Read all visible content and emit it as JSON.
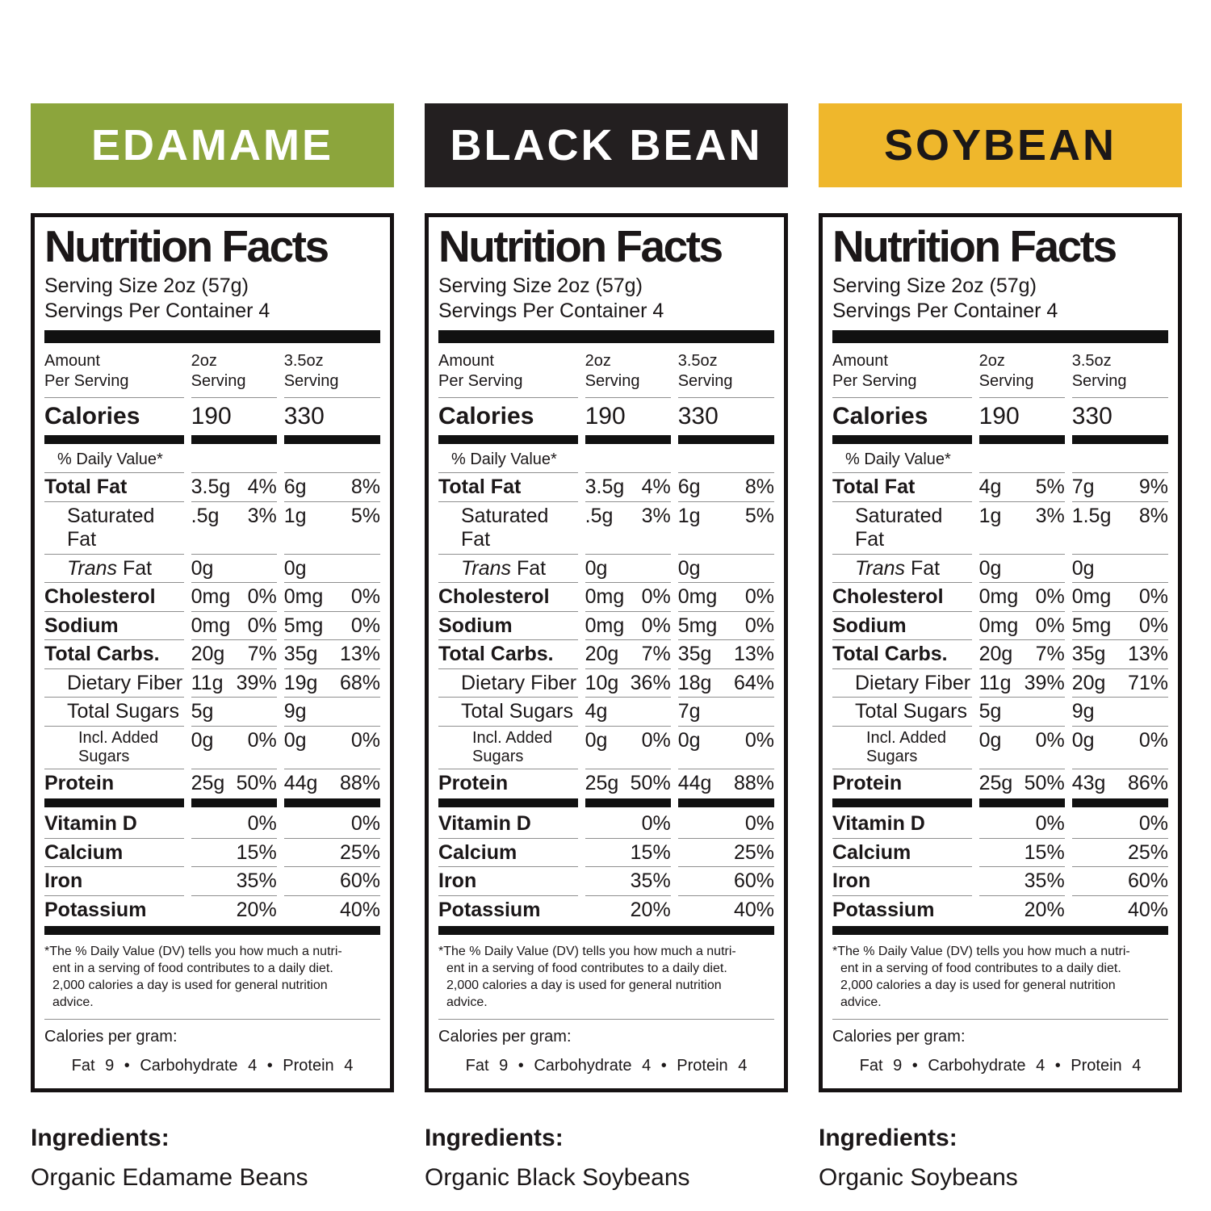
{
  "panels": [
    {
      "header": {
        "label": "EDAMAME",
        "bg": "#8CA53C",
        "fg": "#ffffff"
      },
      "label": {
        "title": "Nutrition Facts",
        "serving_size": "Serving Size 2oz (57g)",
        "servings_per": "Servings Per Container 4",
        "col_headers": [
          "Amount\nPer Serving",
          "2oz\nServing",
          "3.5oz\nServing"
        ],
        "calories": {
          "label": "Calories",
          "v1": "190",
          "v2": "330"
        },
        "dv_heading": "% Daily Value*",
        "rows": [
          {
            "style": "main",
            "label": "Total Fat",
            "v1": "3.5g",
            "p1": "4%",
            "v2": "6g",
            "p2": "8%"
          },
          {
            "style": "sub",
            "label": "Saturated Fat",
            "v1": ".5g",
            "p1": "3%",
            "v2": "1g",
            "p2": "5%"
          },
          {
            "style": "sub",
            "italic": "Trans ",
            "label": "Fat",
            "v1": "0g",
            "p1": "",
            "v2": "0g",
            "p2": ""
          },
          {
            "style": "main",
            "label": "Cholesterol",
            "v1": "0mg",
            "p1": "0%",
            "v2": "0mg",
            "p2": "0%"
          },
          {
            "style": "main",
            "label": "Sodium",
            "v1": "0mg",
            "p1": "0%",
            "v2": "5mg",
            "p2": "0%"
          },
          {
            "style": "main",
            "label": "Total Carbs.",
            "v1": "20g",
            "p1": "7%",
            "v2": "35g",
            "p2": "13%"
          },
          {
            "style": "sub",
            "label": "Dietary Fiber",
            "v1": "11g",
            "p1": "39%",
            "v2": "19g",
            "p2": "68%"
          },
          {
            "style": "sub",
            "label": "Total Sugars",
            "v1": "5g",
            "p1": "",
            "v2": "9g",
            "p2": ""
          },
          {
            "style": "sub2",
            "label": "Incl. Added Sugars",
            "v1": "0g",
            "p1": "0%",
            "v2": "0g",
            "p2": "0%"
          },
          {
            "style": "main",
            "label": "Protein",
            "v1": "25g",
            "p1": "50%",
            "v2": "44g",
            "p2": "88%"
          }
        ],
        "vitamins": [
          {
            "label": "Vitamin D",
            "p1": "0%",
            "p2": "0%"
          },
          {
            "label": "Calcium",
            "p1": "15%",
            "p2": "25%"
          },
          {
            "label": "Iron",
            "p1": "35%",
            "p2": "60%"
          },
          {
            "label": "Potassium",
            "p1": "20%",
            "p2": "40%"
          }
        ],
        "footnote": "*The % Daily Value (DV) tells you how much a nutri-\nent in a serving of food contributes to a daily diet.\n2,000 calories a day is used for general nutrition\nadvice.",
        "cpg_label": "Calories per gram:",
        "cpg_values": "Fat 9 • Carbohydrate 4 • Protein 4"
      },
      "ingredients": {
        "heading": "Ingredients:",
        "value": "Organic Edamame Beans"
      }
    },
    {
      "header": {
        "label": "BLACK BEAN",
        "bg": "#231F20",
        "fg": "#ffffff"
      },
      "label": {
        "title": "Nutrition Facts",
        "serving_size": "Serving Size 2oz (57g)",
        "servings_per": "Servings Per Container 4",
        "col_headers": [
          "Amount\nPer Serving",
          "2oz\nServing",
          "3.5oz\nServing"
        ],
        "calories": {
          "label": "Calories",
          "v1": "190",
          "v2": "330"
        },
        "dv_heading": "% Daily Value*",
        "rows": [
          {
            "style": "main",
            "label": "Total Fat",
            "v1": "3.5g",
            "p1": "4%",
            "v2": "6g",
            "p2": "8%"
          },
          {
            "style": "sub",
            "label": "Saturated Fat",
            "v1": ".5g",
            "p1": "3%",
            "v2": "1g",
            "p2": "5%"
          },
          {
            "style": "sub",
            "italic": "Trans ",
            "label": "Fat",
            "v1": "0g",
            "p1": "",
            "v2": "0g",
            "p2": ""
          },
          {
            "style": "main",
            "label": "Cholesterol",
            "v1": "0mg",
            "p1": "0%",
            "v2": "0mg",
            "p2": "0%"
          },
          {
            "style": "main",
            "label": "Sodium",
            "v1": "0mg",
            "p1": "0%",
            "v2": "5mg",
            "p2": "0%"
          },
          {
            "style": "main",
            "label": "Total Carbs.",
            "v1": "20g",
            "p1": "7%",
            "v2": "35g",
            "p2": "13%"
          },
          {
            "style": "sub",
            "label": "Dietary Fiber",
            "v1": "10g",
            "p1": "36%",
            "v2": "18g",
            "p2": "64%"
          },
          {
            "style": "sub",
            "label": "Total Sugars",
            "v1": "4g",
            "p1": "",
            "v2": "7g",
            "p2": ""
          },
          {
            "style": "sub2",
            "label": "Incl. Added Sugars",
            "v1": "0g",
            "p1": "0%",
            "v2": "0g",
            "p2": "0%"
          },
          {
            "style": "main",
            "label": "Protein",
            "v1": "25g",
            "p1": "50%",
            "v2": "44g",
            "p2": "88%"
          }
        ],
        "vitamins": [
          {
            "label": "Vitamin D",
            "p1": "0%",
            "p2": "0%"
          },
          {
            "label": "Calcium",
            "p1": "15%",
            "p2": "25%"
          },
          {
            "label": "Iron",
            "p1": "35%",
            "p2": "60%"
          },
          {
            "label": "Potassium",
            "p1": "20%",
            "p2": "40%"
          }
        ],
        "footnote": "*The % Daily Value (DV) tells you how much a nutri-\nent in a serving of food contributes to a daily diet.\n2,000 calories a day is used for general nutrition\nadvice.",
        "cpg_label": "Calories per gram:",
        "cpg_values": "Fat 9 • Carbohydrate 4 • Protein 4"
      },
      "ingredients": {
        "heading": "Ingredients:",
        "value": "Organic Black Soybeans"
      }
    },
    {
      "header": {
        "label": "SOYBEAN",
        "bg": "#EFB72C",
        "fg": "#1b1718"
      },
      "label": {
        "title": "Nutrition Facts",
        "serving_size": "Serving Size 2oz (57g)",
        "servings_per": "Servings Per Container 4",
        "col_headers": [
          "Amount\nPer Serving",
          "2oz\nServing",
          "3.5oz\nServing"
        ],
        "calories": {
          "label": "Calories",
          "v1": "190",
          "v2": "330"
        },
        "dv_heading": "% Daily Value*",
        "rows": [
          {
            "style": "main",
            "label": "Total Fat",
            "v1": "4g",
            "p1": "5%",
            "v2": "7g",
            "p2": "9%"
          },
          {
            "style": "sub",
            "label": "Saturated Fat",
            "v1": "1g",
            "p1": "3%",
            "v2": "1.5g",
            "p2": "8%"
          },
          {
            "style": "sub",
            "italic": "Trans ",
            "label": "Fat",
            "v1": "0g",
            "p1": "",
            "v2": "0g",
            "p2": ""
          },
          {
            "style": "main",
            "label": "Cholesterol",
            "v1": "0mg",
            "p1": "0%",
            "v2": "0mg",
            "p2": "0%"
          },
          {
            "style": "main",
            "label": "Sodium",
            "v1": "0mg",
            "p1": "0%",
            "v2": "5mg",
            "p2": "0%"
          },
          {
            "style": "main",
            "label": "Total Carbs.",
            "v1": "20g",
            "p1": "7%",
            "v2": "35g",
            "p2": "13%"
          },
          {
            "style": "sub",
            "label": "Dietary Fiber",
            "v1": "11g",
            "p1": "39%",
            "v2": "20g",
            "p2": "71%"
          },
          {
            "style": "sub",
            "label": "Total Sugars",
            "v1": "5g",
            "p1": "",
            "v2": "9g",
            "p2": ""
          },
          {
            "style": "sub2",
            "label": "Incl. Added Sugars",
            "v1": "0g",
            "p1": "0%",
            "v2": "0g",
            "p2": "0%"
          },
          {
            "style": "main",
            "label": "Protein",
            "v1": "25g",
            "p1": "50%",
            "v2": "43g",
            "p2": "86%"
          }
        ],
        "vitamins": [
          {
            "label": "Vitamin D",
            "p1": "0%",
            "p2": "0%"
          },
          {
            "label": "Calcium",
            "p1": "15%",
            "p2": "25%"
          },
          {
            "label": "Iron",
            "p1": "35%",
            "p2": "60%"
          },
          {
            "label": "Potassium",
            "p1": "20%",
            "p2": "40%"
          }
        ],
        "footnote": "*The % Daily Value (DV) tells you how much a nutri-\nent in a serving of food contributes to a daily diet.\n2,000 calories a day is used for general nutrition\nadvice.",
        "cpg_label": "Calories per gram:",
        "cpg_values": "Fat 9 • Carbohydrate 4 • Protein 4"
      },
      "ingredients": {
        "heading": "Ingredients:",
        "value": "Organic Soybeans"
      }
    }
  ]
}
